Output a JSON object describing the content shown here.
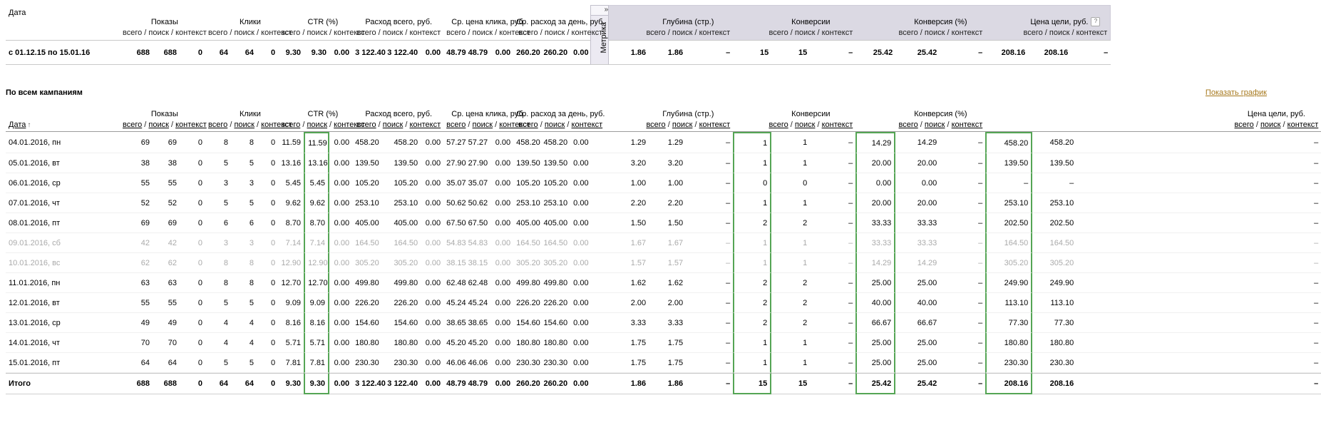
{
  "colors": {
    "highlight": "#55a555",
    "band_bg": "#dbd9e3",
    "muted": "#aaaaaa",
    "chart_link": "#a6781c"
  },
  "sub_columns": [
    "всего",
    "поиск",
    "контекст"
  ],
  "column_groups_left": [
    "Показы",
    "Клики",
    "CTR (%)",
    "Расход всего, руб.",
    "Ср. цена клика, руб.",
    "Ср. расход за день, руб."
  ],
  "column_groups_right": [
    "Глубина (стр.)",
    "Конверсии",
    "Конверсия (%)",
    "Цена цели, руб."
  ],
  "summary": {
    "date_header": "Дата",
    "metrika_tab": "Метрика",
    "expand_icon": "»",
    "help_icon": "?",
    "row": {
      "period": "с 01.12.15 по 15.01.16",
      "cells": [
        "688",
        "688",
        "0",
        "64",
        "64",
        "0",
        "9.30",
        "9.30",
        "0.00",
        "3 122.40",
        "3 122.40",
        "0.00",
        "48.79",
        "48.79",
        "0.00",
        "260.20",
        "260.20",
        "0.00",
        "1.86",
        "1.86",
        "–",
        "15",
        "15",
        "–",
        "25.42",
        "25.42",
        "–",
        "208.16",
        "208.16",
        "–"
      ]
    }
  },
  "campaigns": {
    "title": "По всем кампаниям",
    "chart_link": "Показать график",
    "date_header": "Дата",
    "sort_icon": "↑",
    "highlighted_cells": [
      7,
      21,
      24,
      27
    ],
    "rows": [
      {
        "date": "04.01.2016, пн",
        "cells": [
          "69",
          "69",
          "0",
          "8",
          "8",
          "0",
          "11.59",
          "11.59",
          "0.00",
          "458.20",
          "458.20",
          "0.00",
          "57.27",
          "57.27",
          "0.00",
          "458.20",
          "458.20",
          "0.00",
          "1.29",
          "1.29",
          "–",
          "1",
          "1",
          "–",
          "14.29",
          "14.29",
          "–",
          "458.20",
          "458.20",
          "–"
        ]
      },
      {
        "date": "05.01.2016, вт",
        "cells": [
          "38",
          "38",
          "0",
          "5",
          "5",
          "0",
          "13.16",
          "13.16",
          "0.00",
          "139.50",
          "139.50",
          "0.00",
          "27.90",
          "27.90",
          "0.00",
          "139.50",
          "139.50",
          "0.00",
          "3.20",
          "3.20",
          "–",
          "1",
          "1",
          "–",
          "20.00",
          "20.00",
          "–",
          "139.50",
          "139.50",
          "–"
        ]
      },
      {
        "date": "06.01.2016, ср",
        "cells": [
          "55",
          "55",
          "0",
          "3",
          "3",
          "0",
          "5.45",
          "5.45",
          "0.00",
          "105.20",
          "105.20",
          "0.00",
          "35.07",
          "35.07",
          "0.00",
          "105.20",
          "105.20",
          "0.00",
          "1.00",
          "1.00",
          "–",
          "0",
          "0",
          "–",
          "0.00",
          "0.00",
          "–",
          "–",
          "–",
          "–"
        ]
      },
      {
        "date": "07.01.2016, чт",
        "cells": [
          "52",
          "52",
          "0",
          "5",
          "5",
          "0",
          "9.62",
          "9.62",
          "0.00",
          "253.10",
          "253.10",
          "0.00",
          "50.62",
          "50.62",
          "0.00",
          "253.10",
          "253.10",
          "0.00",
          "2.20",
          "2.20",
          "–",
          "1",
          "1",
          "–",
          "20.00",
          "20.00",
          "–",
          "253.10",
          "253.10",
          "–"
        ]
      },
      {
        "date": "08.01.2016, пт",
        "cells": [
          "69",
          "69",
          "0",
          "6",
          "6",
          "0",
          "8.70",
          "8.70",
          "0.00",
          "405.00",
          "405.00",
          "0.00",
          "67.50",
          "67.50",
          "0.00",
          "405.00",
          "405.00",
          "0.00",
          "1.50",
          "1.50",
          "–",
          "2",
          "2",
          "–",
          "33.33",
          "33.33",
          "–",
          "202.50",
          "202.50",
          "–"
        ]
      },
      {
        "date": "09.01.2016, сб",
        "muted": true,
        "cells": [
          "42",
          "42",
          "0",
          "3",
          "3",
          "0",
          "7.14",
          "7.14",
          "0.00",
          "164.50",
          "164.50",
          "0.00",
          "54.83",
          "54.83",
          "0.00",
          "164.50",
          "164.50",
          "0.00",
          "1.67",
          "1.67",
          "–",
          "1",
          "1",
          "–",
          "33.33",
          "33.33",
          "–",
          "164.50",
          "164.50",
          "–"
        ]
      },
      {
        "date": "10.01.2016, вс",
        "muted": true,
        "cells": [
          "62",
          "62",
          "0",
          "8",
          "8",
          "0",
          "12.90",
          "12.90",
          "0.00",
          "305.20",
          "305.20",
          "0.00",
          "38.15",
          "38.15",
          "0.00",
          "305.20",
          "305.20",
          "0.00",
          "1.57",
          "1.57",
          "–",
          "1",
          "1",
          "–",
          "14.29",
          "14.29",
          "–",
          "305.20",
          "305.20",
          "–"
        ]
      },
      {
        "date": "11.01.2016, пн",
        "cells": [
          "63",
          "63",
          "0",
          "8",
          "8",
          "0",
          "12.70",
          "12.70",
          "0.00",
          "499.80",
          "499.80",
          "0.00",
          "62.48",
          "62.48",
          "0.00",
          "499.80",
          "499.80",
          "0.00",
          "1.62",
          "1.62",
          "–",
          "2",
          "2",
          "–",
          "25.00",
          "25.00",
          "–",
          "249.90",
          "249.90",
          "–"
        ]
      },
      {
        "date": "12.01.2016, вт",
        "cells": [
          "55",
          "55",
          "0",
          "5",
          "5",
          "0",
          "9.09",
          "9.09",
          "0.00",
          "226.20",
          "226.20",
          "0.00",
          "45.24",
          "45.24",
          "0.00",
          "226.20",
          "226.20",
          "0.00",
          "2.00",
          "2.00",
          "–",
          "2",
          "2",
          "–",
          "40.00",
          "40.00",
          "–",
          "113.10",
          "113.10",
          "–"
        ]
      },
      {
        "date": "13.01.2016, ср",
        "cells": [
          "49",
          "49",
          "0",
          "4",
          "4",
          "0",
          "8.16",
          "8.16",
          "0.00",
          "154.60",
          "154.60",
          "0.00",
          "38.65",
          "38.65",
          "0.00",
          "154.60",
          "154.60",
          "0.00",
          "3.33",
          "3.33",
          "–",
          "2",
          "2",
          "–",
          "66.67",
          "66.67",
          "–",
          "77.30",
          "77.30",
          "–"
        ]
      },
      {
        "date": "14.01.2016, чт",
        "cells": [
          "70",
          "70",
          "0",
          "4",
          "4",
          "0",
          "5.71",
          "5.71",
          "0.00",
          "180.80",
          "180.80",
          "0.00",
          "45.20",
          "45.20",
          "0.00",
          "180.80",
          "180.80",
          "0.00",
          "1.75",
          "1.75",
          "–",
          "1",
          "1",
          "–",
          "25.00",
          "25.00",
          "–",
          "180.80",
          "180.80",
          "–"
        ]
      },
      {
        "date": "15.01.2016, пт",
        "cells": [
          "64",
          "64",
          "0",
          "5",
          "5",
          "0",
          "7.81",
          "7.81",
          "0.00",
          "230.30",
          "230.30",
          "0.00",
          "46.06",
          "46.06",
          "0.00",
          "230.30",
          "230.30",
          "0.00",
          "1.75",
          "1.75",
          "–",
          "1",
          "1",
          "–",
          "25.00",
          "25.00",
          "–",
          "230.30",
          "230.30",
          "–"
        ]
      },
      {
        "date": "Итого",
        "total": true,
        "cells": [
          "688",
          "688",
          "0",
          "64",
          "64",
          "0",
          "9.30",
          "9.30",
          "0.00",
          "3 122.40",
          "3 122.40",
          "0.00",
          "48.79",
          "48.79",
          "0.00",
          "260.20",
          "260.20",
          "0.00",
          "1.86",
          "1.86",
          "–",
          "15",
          "15",
          "–",
          "25.42",
          "25.42",
          "–",
          "208.16",
          "208.16",
          "–"
        ]
      }
    ]
  }
}
